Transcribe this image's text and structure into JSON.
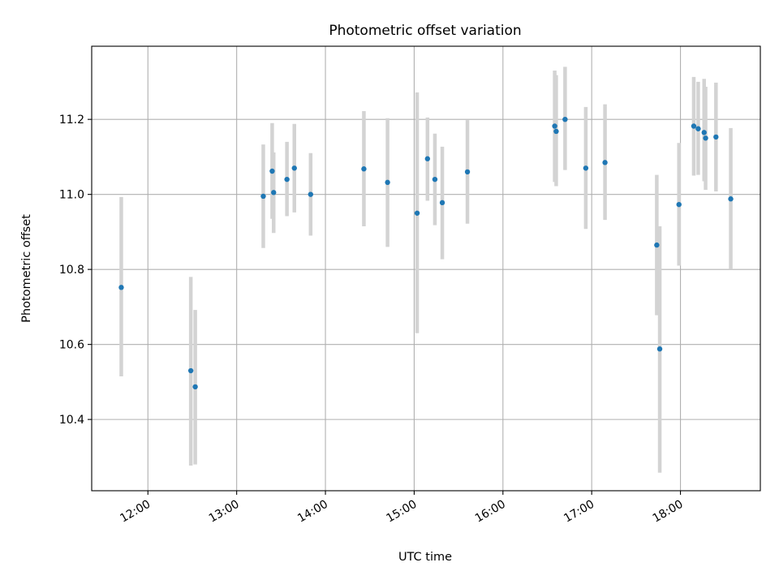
{
  "chart_data": {
    "type": "scatter",
    "title": "Photometric offset variation",
    "xlabel": "UTC time",
    "ylabel": "Photometric offset",
    "x_unit": "time of day (HH:MM UTC)",
    "xlim": [
      "11:22",
      "18:54"
    ],
    "ylim": [
      10.21,
      11.395
    ],
    "x_ticks": [
      "12:00",
      "13:00",
      "14:00",
      "15:00",
      "16:00",
      "17:00",
      "18:00"
    ],
    "y_ticks": [
      10.4,
      10.6,
      10.8,
      11.0,
      11.2
    ],
    "y_tick_labels": [
      "10.4",
      "10.6",
      "10.8",
      "11.0",
      "11.2"
    ],
    "grid": true,
    "point_color": "#1f77b4",
    "errorbar_color": "#d3d3d3",
    "series": [
      {
        "points": [
          {
            "t": "11:42",
            "y": 10.752,
            "ylo": 10.515,
            "yhi": 10.993
          },
          {
            "t": "12:29",
            "y": 10.53,
            "ylo": 10.277,
            "yhi": 10.78
          },
          {
            "t": "12:32",
            "y": 10.487,
            "ylo": 10.28,
            "yhi": 10.692
          },
          {
            "t": "13:18",
            "y": 10.995,
            "ylo": 10.857,
            "yhi": 11.133
          },
          {
            "t": "13:24",
            "y": 11.062,
            "ylo": 10.935,
            "yhi": 11.19
          },
          {
            "t": "13:25",
            "y": 11.005,
            "ylo": 10.897,
            "yhi": 11.112
          },
          {
            "t": "13:34",
            "y": 11.04,
            "ylo": 10.942,
            "yhi": 11.14
          },
          {
            "t": "13:39",
            "y": 11.07,
            "ylo": 10.952,
            "yhi": 11.188
          },
          {
            "t": "13:50",
            "y": 11.0,
            "ylo": 10.89,
            "yhi": 11.11
          },
          {
            "t": "14:26",
            "y": 11.068,
            "ylo": 10.915,
            "yhi": 11.222
          },
          {
            "t": "14:42",
            "y": 11.032,
            "ylo": 10.86,
            "yhi": 11.203
          },
          {
            "t": "15:02",
            "y": 10.95,
            "ylo": 10.63,
            "yhi": 11.272
          },
          {
            "t": "15:09",
            "y": 11.095,
            "ylo": 10.983,
            "yhi": 11.205
          },
          {
            "t": "15:14",
            "y": 11.04,
            "ylo": 10.918,
            "yhi": 11.162
          },
          {
            "t": "15:19",
            "y": 10.978,
            "ylo": 10.827,
            "yhi": 11.127
          },
          {
            "t": "15:36",
            "y": 11.06,
            "ylo": 10.922,
            "yhi": 11.198
          },
          {
            "t": "16:35",
            "y": 11.182,
            "ylo": 11.033,
            "yhi": 11.33
          },
          {
            "t": "16:36",
            "y": 11.168,
            "ylo": 11.022,
            "yhi": 11.318
          },
          {
            "t": "16:42",
            "y": 11.2,
            "ylo": 11.065,
            "yhi": 11.34
          },
          {
            "t": "16:56",
            "y": 11.07,
            "ylo": 10.908,
            "yhi": 11.233
          },
          {
            "t": "17:09",
            "y": 11.085,
            "ylo": 10.932,
            "yhi": 11.24
          },
          {
            "t": "17:44",
            "y": 10.865,
            "ylo": 10.678,
            "yhi": 11.052
          },
          {
            "t": "17:46",
            "y": 10.588,
            "ylo": 10.258,
            "yhi": 10.915
          },
          {
            "t": "17:59",
            "y": 10.973,
            "ylo": 10.81,
            "yhi": 11.137
          },
          {
            "t": "18:09",
            "y": 11.182,
            "ylo": 11.05,
            "yhi": 11.313
          },
          {
            "t": "18:12",
            "y": 11.175,
            "ylo": 11.052,
            "yhi": 11.3
          },
          {
            "t": "18:16",
            "y": 11.165,
            "ylo": 11.035,
            "yhi": 11.308
          },
          {
            "t": "18:17",
            "y": 11.15,
            "ylo": 11.012,
            "yhi": 11.287
          },
          {
            "t": "18:24",
            "y": 11.153,
            "ylo": 11.008,
            "yhi": 11.298
          },
          {
            "t": "18:34",
            "y": 10.988,
            "ylo": 10.8,
            "yhi": 11.177
          }
        ]
      }
    ]
  }
}
